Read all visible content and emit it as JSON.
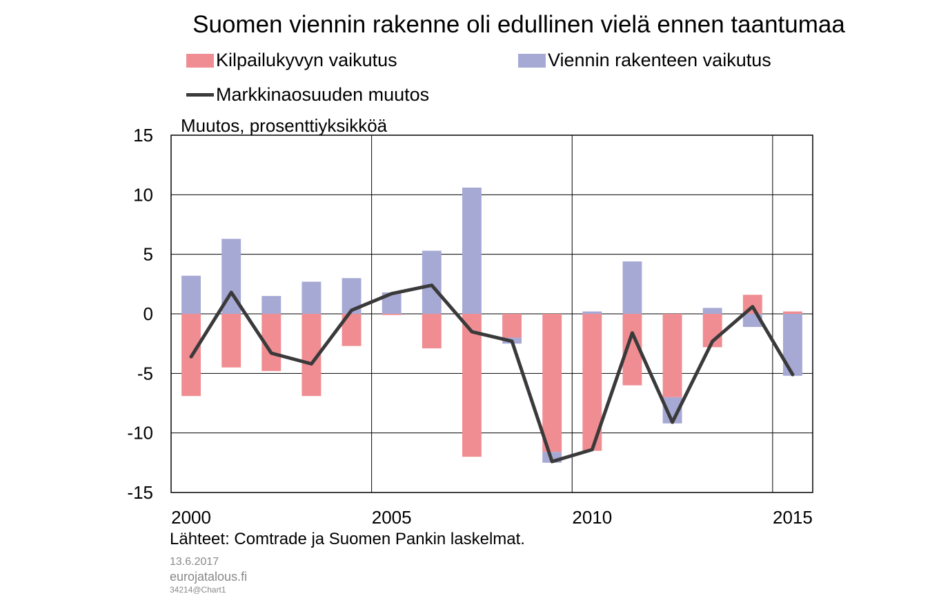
{
  "chart_data": {
    "type": "bar",
    "title": "Suomen viennin rakenne oli edullinen vielä ennen taantumaa",
    "ylabel": "Muutos, prosenttiyksikköä",
    "ylim": [
      -15,
      15
    ],
    "yticks": [
      15,
      10,
      5,
      0,
      -5,
      -10,
      -15
    ],
    "xticks": [
      2000,
      2005,
      2010,
      2015
    ],
    "xlim": [
      1999.5,
      2015.5
    ],
    "years": [
      2000,
      2001,
      2002,
      2003,
      2004,
      2005,
      2006,
      2007,
      2008,
      2009,
      2010,
      2011,
      2012,
      2013,
      2014,
      2015
    ],
    "grid": true,
    "legend_position": "top",
    "series": [
      {
        "name": "Kilpailukyvyn vaikutus",
        "kind": "bar",
        "color": "#f08d92",
        "values": [
          -6.9,
          -4.5,
          -4.8,
          -6.9,
          -2.7,
          -0.1,
          -2.9,
          -12.0,
          -2.0,
          -11.6,
          -11.5,
          -6.0,
          -7.0,
          -2.8,
          1.6,
          0.2
        ]
      },
      {
        "name": "Viennin rakenteen vaikutus",
        "kind": "bar",
        "color": "#a7a9d5",
        "values": [
          3.2,
          6.3,
          1.5,
          2.7,
          3.0,
          1.8,
          5.3,
          10.6,
          -0.5,
          -0.9,
          0.2,
          4.4,
          -2.2,
          0.5,
          -1.1,
          -5.2
        ]
      },
      {
        "name": "Markkinaosuuden muutos",
        "kind": "line",
        "color": "#3a3a3a",
        "values": [
          -3.6,
          1.8,
          -3.3,
          -4.2,
          0.3,
          1.7,
          2.4,
          -1.5,
          -2.3,
          -12.4,
          -11.4,
          -1.6,
          -9.1,
          -2.3,
          0.6,
          -5.1
        ]
      }
    ]
  },
  "source_note": "Lähteet: Comtrade ja Suomen Pankin laskelmat.",
  "footer": {
    "date": "13.6.2017",
    "site": "eurojatalous.fi",
    "code": "34214@Chart1"
  }
}
